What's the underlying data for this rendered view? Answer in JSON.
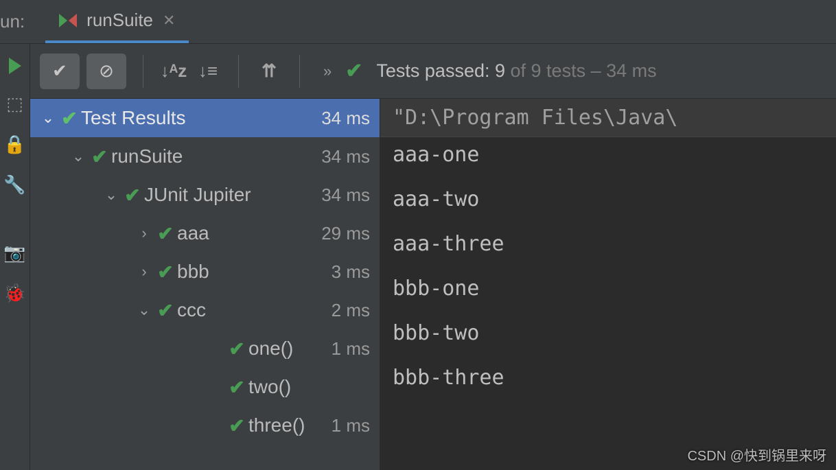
{
  "header": {
    "run_label": "un:",
    "tab_name": "runSuite"
  },
  "toolbar": {
    "status_prefix": "Tests passed: ",
    "passed_count": "9",
    "status_suffix": " of 9 tests – 34 ms"
  },
  "tree": [
    {
      "indent": 1,
      "chev": "⌄",
      "label": "Test Results",
      "time": "34 ms",
      "selected": true
    },
    {
      "indent": 2,
      "chev": "⌄",
      "label": "runSuite",
      "time": "34 ms",
      "selected": false
    },
    {
      "indent": 3,
      "chev": "⌄",
      "label": "JUnit Jupiter",
      "time": "34 ms",
      "selected": false
    },
    {
      "indent": 4,
      "chev": "›",
      "label": "aaa",
      "time": "29 ms",
      "selected": false
    },
    {
      "indent": 4,
      "chev": "›",
      "label": "bbb",
      "time": "3 ms",
      "selected": false
    },
    {
      "indent": 4,
      "chev": "⌄",
      "label": "ccc",
      "time": "2 ms",
      "selected": false
    },
    {
      "indent": 5,
      "chev": "",
      "label": "one()",
      "time": "1 ms",
      "selected": false
    },
    {
      "indent": 5,
      "chev": "",
      "label": "two()",
      "time": "",
      "selected": false
    },
    {
      "indent": 5,
      "chev": "",
      "label": "three()",
      "time": "1 ms",
      "selected": false
    }
  ],
  "console": {
    "header": "\"D:\\Program Files\\Java\\",
    "lines": [
      "aaa-one",
      "aaa-two",
      "aaa-three",
      "bbb-one",
      "bbb-two",
      "bbb-three"
    ]
  },
  "watermark": "CSDN @快到锅里来呀",
  "colors": {
    "bg": "#3c3f41",
    "console_bg": "#2b2b2b",
    "selection": "#4b6eaf",
    "pass_green": "#499c54",
    "text_dim": "#9a9a9a"
  }
}
